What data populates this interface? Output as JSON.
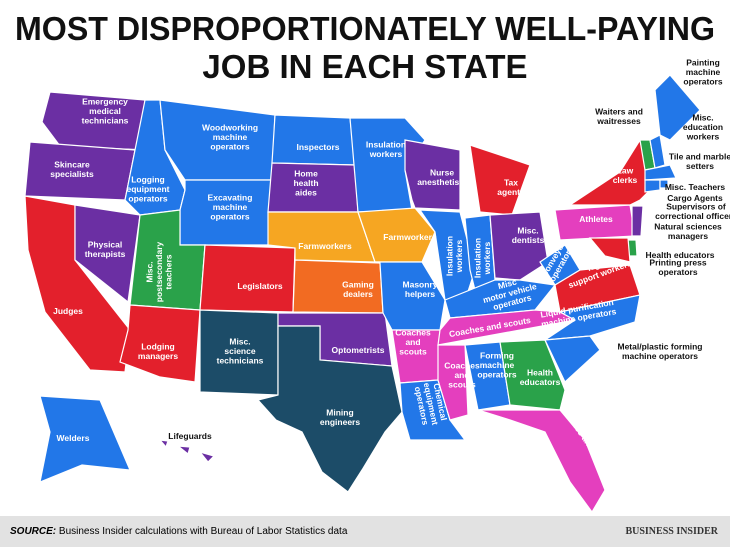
{
  "title": [
    "MOST DISPROPORTIONATELY WELL-PAYING",
    "JOB IN EACH STATE"
  ],
  "regions": [
    {
      "label": [
        "Emergency",
        "medical",
        "technicians"
      ]
    },
    {
      "label": [
        "Skincare",
        "specialists"
      ]
    },
    {
      "label": [
        "Judges"
      ]
    },
    {
      "label": [
        "Physical",
        "therapists"
      ]
    },
    {
      "label": [
        "Logging",
        "equipment",
        "operators"
      ]
    },
    {
      "label": [
        "Woodworking",
        "machine",
        "operators"
      ]
    },
    {
      "label": [
        "Excavating",
        "machine",
        "operators"
      ]
    },
    {
      "label": [
        "Misc.",
        "postsecondary",
        "teachers"
      ]
    },
    {
      "label": [
        "Legislators"
      ]
    },
    {
      "label": [
        "Lodging",
        "managers"
      ]
    },
    {
      "label": [
        "Misc.",
        "science",
        "technicians"
      ]
    },
    {
      "label": [
        "Inspectors"
      ]
    },
    {
      "label": [
        "Home",
        "health",
        "aides"
      ]
    },
    {
      "label": [
        "Farmworkers"
      ]
    },
    {
      "label": [
        "Gaming",
        "dealers"
      ]
    },
    {
      "label": [
        "Optometrists"
      ]
    },
    {
      "label": [
        "Mining",
        "engineers"
      ]
    },
    {
      "label": [
        "Insulation",
        "workers"
      ]
    },
    {
      "label": [
        "Farmworkers"
      ]
    },
    {
      "label": [
        "Masonry",
        "helpers"
      ]
    },
    {
      "label": [
        "Coaches",
        "and",
        "scouts"
      ]
    },
    {
      "label": [
        "Chemical",
        "equipment",
        "operators"
      ]
    },
    {
      "label": [
        "Nurse",
        "anesthetists"
      ]
    },
    {
      "label": [
        "Insulation",
        "workers"
      ]
    },
    {
      "label": [
        "Tax",
        "agents"
      ]
    },
    {
      "label": [
        "Insulation",
        "workers"
      ]
    },
    {
      "label": [
        "Misc.",
        "dentists"
      ]
    },
    {
      "label": [
        "Misc",
        "motor vehicle",
        "operators"
      ]
    },
    {
      "label": [
        "Conveyor",
        "operators"
      ]
    },
    {
      "label": [
        "Misc",
        "legal",
        "support workers"
      ]
    },
    {
      "label": [
        "Coaches and scouts"
      ]
    },
    {
      "label": [
        "Liquid purification",
        "machine operators"
      ]
    },
    {
      "label": [
        "Coaches",
        "and",
        "scouts"
      ]
    },
    {
      "label": [
        "Forming",
        "machine",
        "operators"
      ]
    },
    {
      "label": [
        "Health",
        "educators"
      ]
    },
    {
      "label": [
        "Coaches and scouts"
      ]
    },
    {
      "label": [
        "Athletes"
      ]
    },
    {
      "label": [
        "Law",
        "clerks"
      ]
    },
    {
      "label": [
        "Welders"
      ]
    },
    {
      "label": [
        "Lifeguards"
      ]
    },
    {
      "label": [
        "Painting",
        "machine",
        "operators"
      ]
    },
    {
      "label": [
        "Waiters and",
        "waitresses"
      ]
    },
    {
      "label": [
        "Misc.",
        "education",
        "workers"
      ]
    },
    {
      "label": [
        "Tile and marble",
        "setters"
      ]
    },
    {
      "label": [
        "Misc. Teachers"
      ]
    },
    {
      "label": [
        "Cargo Agents"
      ]
    },
    {
      "label": [
        "Supervisors of",
        "correctional officers"
      ]
    },
    {
      "label": [
        "Natural sciences",
        "managers"
      ]
    },
    {
      "label": [
        "Health educators"
      ]
    },
    {
      "label": [
        "Printing press",
        "operators"
      ]
    },
    {
      "label": [
        "Metal/plastic forming",
        "machine operators"
      ]
    }
  ],
  "footer": {
    "source_label": "SOURCE:",
    "source": "Business Insider calculations with Bureau of Labor Statistics data",
    "brand": "BUSINESS INSIDER"
  }
}
